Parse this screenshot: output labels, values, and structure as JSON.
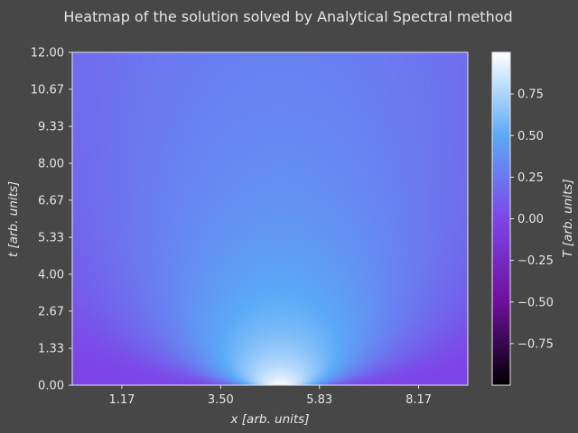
{
  "chart_data": {
    "type": "heatmap",
    "title": "Heatmap of the solution solved by Analytical Spectral method",
    "xlabel": "x [arb. units]",
    "ylabel": "t [arb. units]",
    "colorbar_label": "T [arb. units]",
    "xlim": [
      0,
      9.33
    ],
    "ylim": [
      0,
      12.0
    ],
    "x_ticks": [
      1.17,
      3.5,
      5.83,
      8.17
    ],
    "x_tick_labels": [
      "1.17",
      "3.50",
      "5.83",
      "8.17"
    ],
    "y_ticks": [
      0.0,
      1.33,
      2.67,
      4.0,
      5.33,
      6.67,
      8.0,
      9.33,
      10.67,
      12.0
    ],
    "y_tick_labels": [
      "0.00",
      "1.33",
      "2.67",
      "4.00",
      "5.33",
      "6.67",
      "8.00",
      "9.33",
      "10.67",
      "12.00"
    ],
    "colorbar_range": [
      -1.0,
      1.0
    ],
    "colorbar_ticks": [
      0.75,
      0.5,
      0.25,
      0.0,
      -0.25,
      -0.5,
      -0.75
    ],
    "colorbar_tick_labels": [
      "0.75",
      "0.50",
      "0.25",
      "0.00",
      "−0.25",
      "−0.50",
      "−0.75"
    ],
    "colormap": "black-purple-blue-white",
    "colormap_stops": [
      {
        "value": -1.0,
        "color": "#000000"
      },
      {
        "value": -0.5,
        "color": "#6f0f9c"
      },
      {
        "value": 0.0,
        "color": "#7d46e8"
      },
      {
        "value": 0.5,
        "color": "#5aaaf7"
      },
      {
        "value": 1.0,
        "color": "#ffffff"
      }
    ],
    "field_description": "peak value about 1.0 at x≈4.9, t=0; decays with t toward about 0.0 at t=12; about -0.02 near x=0 and x=9.33 at t=0",
    "grid": false,
    "colorbar_position": "right"
  },
  "colors": {
    "background": "#474747",
    "text": "#e6e6e6",
    "frame": "#e6e6e6"
  }
}
